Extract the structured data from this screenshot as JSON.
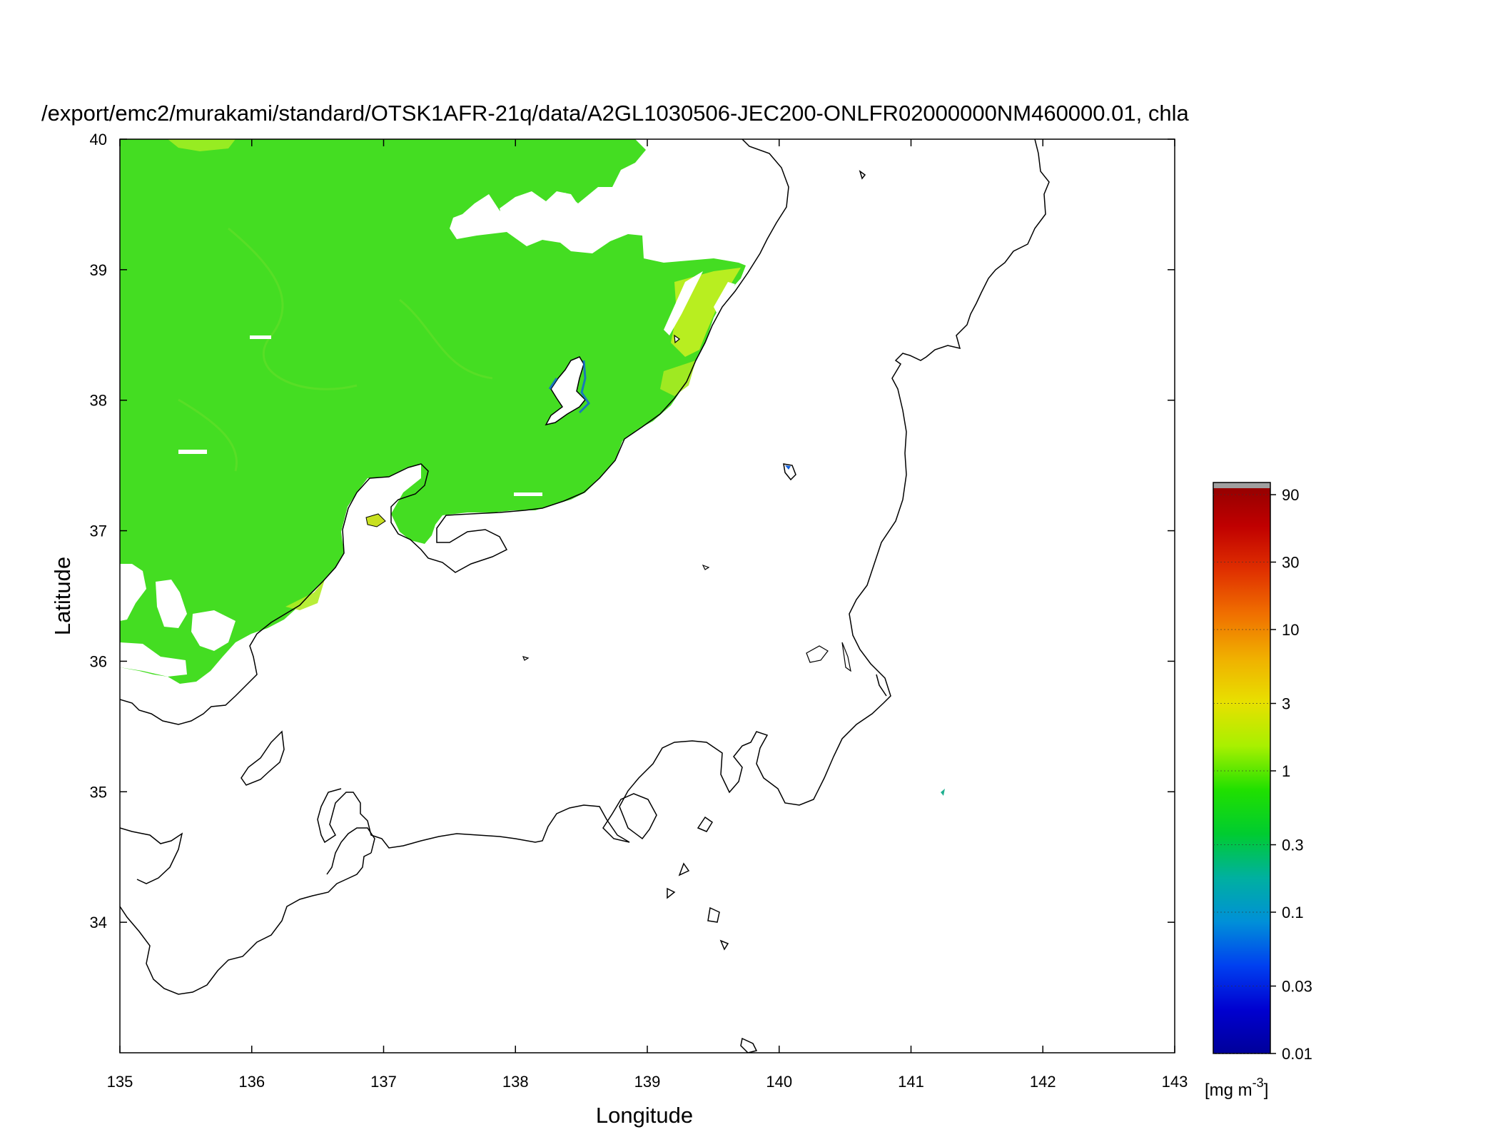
{
  "title": "/export/emc2/murakami/standard/OTSK1AFR-21q/data/A2GL1030506-JEC200-ONLFR02000000NM460000.01, chla",
  "x_axis": {
    "label": "Longitude",
    "ticks": [
      "135",
      "136",
      "137",
      "138",
      "139",
      "140",
      "141",
      "142",
      "143"
    ],
    "range": [
      135,
      143
    ]
  },
  "y_axis": {
    "label": "Latitude",
    "ticks": [
      "34",
      "35",
      "36",
      "37",
      "38",
      "39",
      "40"
    ],
    "range": [
      33,
      40
    ]
  },
  "colorbar": {
    "unit_label": "[mg m",
    "unit_exponent": "-3",
    "unit_close": "]",
    "scale": "log",
    "range": [
      0.01,
      100
    ],
    "ticks": [
      "90",
      "30",
      "10",
      "3",
      "1",
      "0.3",
      "0.1",
      "0.03",
      "0.01"
    ],
    "tick_values": [
      90,
      30,
      10,
      3,
      1,
      0.3,
      0.1,
      0.03,
      0.01
    ],
    "colors": [
      "#00009a",
      "#0000d0",
      "#0040f0",
      "#0090d8",
      "#00b0a0",
      "#00cc30",
      "#20e000",
      "#a8f000",
      "#e8e000",
      "#f0b000",
      "#f07000",
      "#e03000",
      "#c00000",
      "#900000"
    ],
    "overflow_color": "#a0a0a0"
  },
  "map": {
    "variable": "chla",
    "colors": {
      "typical": "#44dd22",
      "high": "#c8ee20",
      "low": "#1060e0",
      "land": "#ffffff",
      "coast": "#000000"
    }
  }
}
